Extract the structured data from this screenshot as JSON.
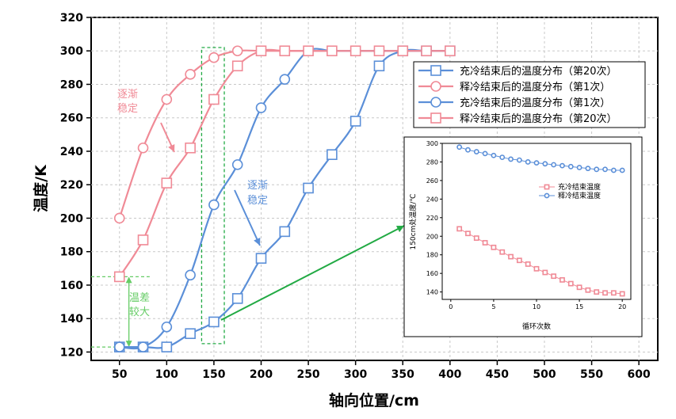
{
  "chart_data": {
    "type": "line",
    "xlabel": "轴向位置/cm",
    "ylabel": "温度/K",
    "xlim": [
      20,
      620
    ],
    "ylim": [
      115,
      320
    ],
    "xticks": [
      50,
      100,
      150,
      200,
      250,
      300,
      350,
      400,
      450,
      500,
      550,
      600
    ],
    "yticks": [
      120,
      140,
      160,
      180,
      200,
      220,
      240,
      260,
      280,
      300,
      320
    ],
    "grid": true,
    "legend_position": "top-right",
    "colors": {
      "red": "#f08a96",
      "blue": "#5b8fd8",
      "green": "#66cc66",
      "arrow_green": "#22aa44"
    },
    "series": [
      {
        "name": "充冷结束后的温度分布（第20次）",
        "color": "blue",
        "marker": "square",
        "x": [
          50,
          75,
          100,
          125,
          150,
          175,
          200,
          225,
          250,
          275,
          300,
          325,
          350,
          375,
          400
        ],
        "y": [
          123,
          123,
          123,
          131,
          138,
          152,
          176,
          192,
          218,
          238,
          258,
          291,
          300,
          300,
          300
        ]
      },
      {
        "name": "释冷结束后的温度分布（第1次）",
        "color": "red",
        "marker": "circle",
        "x": [
          50,
          75,
          100,
          125,
          150,
          175,
          200,
          225,
          250,
          275,
          300,
          325,
          350,
          375,
          400
        ],
        "y": [
          200,
          242,
          271,
          286,
          296,
          300,
          300,
          300,
          300,
          300,
          300,
          300,
          300,
          300,
          300
        ]
      },
      {
        "name": "充冷结束后的温度分布（第1次）",
        "color": "blue",
        "marker": "circle",
        "x": [
          50,
          75,
          100,
          125,
          150,
          175,
          200,
          225,
          250,
          275,
          300,
          325,
          350,
          375,
          400
        ],
        "y": [
          123,
          123,
          135,
          166,
          208,
          232,
          266,
          283,
          300,
          300,
          300,
          300,
          300,
          300,
          300
        ]
      },
      {
        "name": "释冷结束后的温度分布（第20次）",
        "color": "red",
        "marker": "square",
        "x": [
          50,
          75,
          100,
          125,
          150,
          175,
          200,
          225,
          250,
          275,
          300,
          325,
          350,
          375,
          400
        ],
        "y": [
          165,
          187,
          221,
          242,
          271,
          291,
          300,
          300,
          300,
          300,
          300,
          300,
          300,
          300,
          300
        ]
      }
    ],
    "annotations": {
      "red_text": [
        "逐渐",
        "稳定"
      ],
      "blue_text": [
        "逐渐",
        "稳定"
      ],
      "green_text": [
        "温差",
        "较大"
      ],
      "highlight_x_range": [
        137,
        161
      ],
      "temp_diff_levels": [
        165,
        123
      ]
    },
    "inset": {
      "xlabel": "循环次数",
      "ylabel": "150cm处温度/℃",
      "xlim": [
        -1,
        21
      ],
      "ylim": [
        132,
        300
      ],
      "xticks": [
        0,
        5,
        10,
        15,
        20
      ],
      "yticks": [
        140,
        160,
        180,
        200,
        220,
        240,
        260,
        280,
        300
      ],
      "series": [
        {
          "name": "充冷结束温度",
          "color": "red",
          "marker": "square",
          "x": [
            1,
            2,
            3,
            4,
            5,
            6,
            7,
            8,
            9,
            10,
            11,
            12,
            13,
            14,
            15,
            16,
            17,
            18,
            19,
            20
          ],
          "y": [
            208,
            203,
            198,
            193,
            188,
            183,
            178,
            174,
            170,
            165,
            161,
            157,
            153,
            149,
            145,
            142,
            140,
            139,
            139,
            138
          ]
        },
        {
          "name": "释冷结束温度",
          "color": "blue",
          "marker": "circle",
          "x": [
            1,
            2,
            3,
            4,
            5,
            6,
            7,
            8,
            9,
            10,
            11,
            12,
            13,
            14,
            15,
            16,
            17,
            18,
            19,
            20
          ],
          "y": [
            296,
            293,
            291,
            289,
            287,
            285,
            283,
            282,
            280,
            279,
            278,
            277,
            276,
            275,
            274,
            273,
            272,
            272,
            271,
            271
          ]
        }
      ]
    }
  }
}
